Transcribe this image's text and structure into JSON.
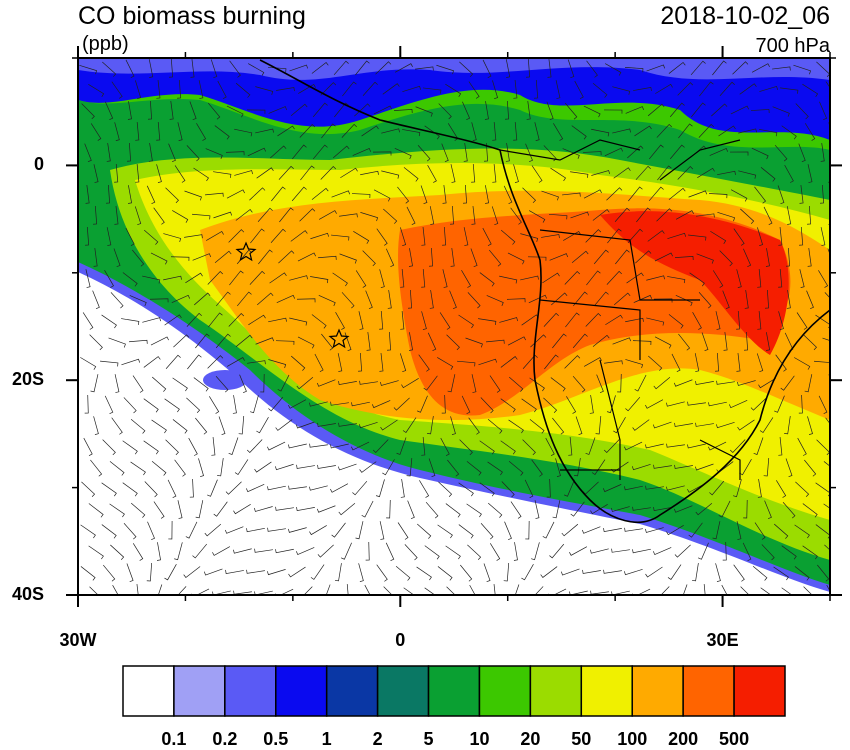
{
  "header": {
    "title": "CO biomass burning",
    "units": "(ppb)",
    "time": "2018-10-02_06",
    "level": "700 hPa"
  },
  "map": {
    "xlim": [
      -30,
      40
    ],
    "ylim": [
      -40,
      10
    ],
    "xticks": [
      {
        "value": -30,
        "label": "30W"
      },
      0,
      {
        "value": 30,
        "label": "30E"
      }
    ],
    "yticks": [
      0,
      {
        "value": -20,
        "label": "20S"
      },
      {
        "value": -40,
        "label": "40S"
      }
    ]
  },
  "colorbar": {
    "levels": [
      0.1,
      0.2,
      0.5,
      1,
      2,
      5,
      10,
      20,
      50,
      100,
      200,
      500
    ],
    "colors": [
      "#ffffff",
      "#a0a0f5",
      "#5a5af5",
      "#0a0af0",
      "#0a37a5",
      "#0a7864",
      "#0aa032",
      "#3cc800",
      "#9bdc00",
      "#f0f000",
      "#ffaa00",
      "#ff6400",
      "#f51e00"
    ]
  }
}
